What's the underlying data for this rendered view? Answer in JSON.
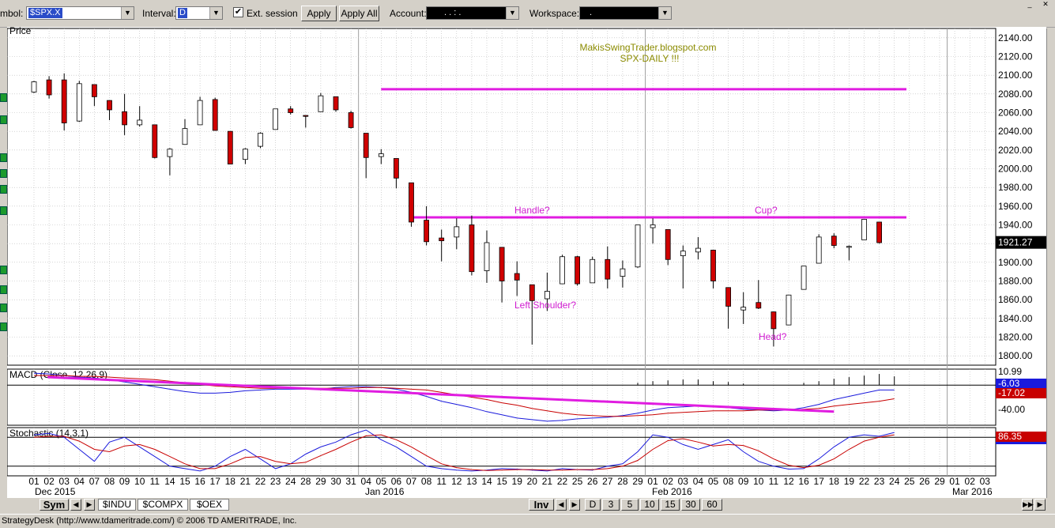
{
  "toolbar": {
    "symbol_label": "mbol:",
    "symbol_value": "$SPX.X",
    "interval_label": "Interval:",
    "interval_value": "D",
    "ext_session_label": "Ext. session",
    "ext_session_checked": "✔",
    "apply_label": "Apply",
    "apply_all_label": "Apply All",
    "account_label": "Account:",
    "account_value": ". . : .",
    "workspace_label": "Workspace:",
    "workspace_value": "."
  },
  "chart_data": [
    {
      "type": "candlestick",
      "panel": "price",
      "title": "Price",
      "annotations_text": [
        "MakisSwingTrader.blogspot.com",
        "SPX-DAILY  !!!"
      ],
      "labels": {
        "handle": "Handle?",
        "cup": "Cup?",
        "left_shoulder": "Left Shoulder?",
        "head": "Head?"
      },
      "last_price": "1921.27",
      "ylim": [
        1790,
        2150
      ],
      "yticks": [
        "2140.00",
        "2120.00",
        "2100.00",
        "2080.00",
        "2060.00",
        "2040.00",
        "2020.00",
        "2000.00",
        "1980.00",
        "1960.00",
        "1940.00",
        "1920.00",
        "1900.00",
        "1880.00",
        "1860.00",
        "1840.00",
        "1820.00",
        "1800.00"
      ],
      "horizontal_lines": [
        {
          "y": 2085,
          "x_start": "2016-01-05",
          "x_end": "2016-02-25",
          "color": "#e01ce0"
        },
        {
          "y": 1948,
          "x_start": "2016-01-07",
          "x_end": "2016-02-25",
          "color": "#e01ce0"
        }
      ],
      "candles": [
        {
          "x": "2015-12-01",
          "o": 2082,
          "h": 2094,
          "l": 2081,
          "c": 2093
        },
        {
          "x": "2015-12-02",
          "o": 2095,
          "h": 2099,
          "l": 2075,
          "c": 2079
        },
        {
          "x": "2015-12-03",
          "o": 2095,
          "h": 2102,
          "l": 2041,
          "c": 2049
        },
        {
          "x": "2015-12-04",
          "o": 2051,
          "h": 2094,
          "l": 2050,
          "c": 2091
        },
        {
          "x": "2015-12-07",
          "o": 2090,
          "h": 2090,
          "l": 2067,
          "c": 2077
        },
        {
          "x": "2015-12-08",
          "o": 2073,
          "h": 2073,
          "l": 2052,
          "c": 2063
        },
        {
          "x": "2015-12-09",
          "o": 2061,
          "h": 2080,
          "l": 2036,
          "c": 2047
        },
        {
          "x": "2015-12-10",
          "o": 2047,
          "h": 2067,
          "l": 2045,
          "c": 2052
        },
        {
          "x": "2015-12-11",
          "o": 2047,
          "h": 2047,
          "l": 2011,
          "c": 2012
        },
        {
          "x": "2015-12-14",
          "o": 2013,
          "h": 2022,
          "l": 1993,
          "c": 2021
        },
        {
          "x": "2015-12-15",
          "o": 2026,
          "h": 2053,
          "l": 2026,
          "c": 2043
        },
        {
          "x": "2015-12-16",
          "o": 2047,
          "h": 2077,
          "l": 2047,
          "c": 2073
        },
        {
          "x": "2015-12-17",
          "o": 2074,
          "h": 2076,
          "l": 2041,
          "c": 2041
        },
        {
          "x": "2015-12-18",
          "o": 2040,
          "h": 2040,
          "l": 2005,
          "c": 2005
        },
        {
          "x": "2015-12-21",
          "o": 2010,
          "h": 2022,
          "l": 2005,
          "c": 2021
        },
        {
          "x": "2015-12-22",
          "o": 2024,
          "h": 2039,
          "l": 2022,
          "c": 2038
        },
        {
          "x": "2015-12-23",
          "o": 2042,
          "h": 2064,
          "l": 2042,
          "c": 2064
        },
        {
          "x": "2015-12-24",
          "o": 2064,
          "h": 2067,
          "l": 2058,
          "c": 2060
        },
        {
          "x": "2015-12-28",
          "o": 2057,
          "h": 2057,
          "l": 2044,
          "c": 2056
        },
        {
          "x": "2015-12-29",
          "o": 2061,
          "h": 2081,
          "l": 2061,
          "c": 2078
        },
        {
          "x": "2015-12-30",
          "o": 2077,
          "h": 2077,
          "l": 2061,
          "c": 2063
        },
        {
          "x": "2015-12-31",
          "o": 2060,
          "h": 2062,
          "l": 2043,
          "c": 2044
        },
        {
          "x": "2016-01-04",
          "o": 2038,
          "h": 2038,
          "l": 1990,
          "c": 2012
        },
        {
          "x": "2016-01-05",
          "o": 2013,
          "h": 2021,
          "l": 2005,
          "c": 2016
        },
        {
          "x": "2016-01-06",
          "o": 2011,
          "h": 2011,
          "l": 1979,
          "c": 1990
        },
        {
          "x": "2016-01-07",
          "o": 1985,
          "h": 1985,
          "l": 1938,
          "c": 1943
        },
        {
          "x": "2016-01-08",
          "o": 1945,
          "h": 1960,
          "l": 1918,
          "c": 1922
        },
        {
          "x": "2016-01-11",
          "o": 1926,
          "h": 1935,
          "l": 1901,
          "c": 1923
        },
        {
          "x": "2016-01-12",
          "o": 1927,
          "h": 1947,
          "l": 1914,
          "c": 1938
        },
        {
          "x": "2016-01-13",
          "o": 1940,
          "h": 1950,
          "l": 1886,
          "c": 1890
        },
        {
          "x": "2016-01-14",
          "o": 1891,
          "h": 1934,
          "l": 1878,
          "c": 1921
        },
        {
          "x": "2016-01-15",
          "o": 1916,
          "h": 1916,
          "l": 1857,
          "c": 1880
        },
        {
          "x": "2016-01-19",
          "o": 1888,
          "h": 1901,
          "l": 1864,
          "c": 1881
        },
        {
          "x": "2016-01-20",
          "o": 1876,
          "h": 1876,
          "l": 1812,
          "c": 1859
        },
        {
          "x": "2016-01-21",
          "o": 1861,
          "h": 1889,
          "l": 1848,
          "c": 1869
        },
        {
          "x": "2016-01-22",
          "o": 1877,
          "h": 1908,
          "l": 1877,
          "c": 1906
        },
        {
          "x": "2016-01-25",
          "o": 1906,
          "h": 1907,
          "l": 1875,
          "c": 1877
        },
        {
          "x": "2016-01-26",
          "o": 1878,
          "h": 1906,
          "l": 1878,
          "c": 1903
        },
        {
          "x": "2016-01-27",
          "o": 1903,
          "h": 1917,
          "l": 1872,
          "c": 1882
        },
        {
          "x": "2016-01-28",
          "o": 1885,
          "h": 1902,
          "l": 1873,
          "c": 1893
        },
        {
          "x": "2016-01-29",
          "o": 1895,
          "h": 1940,
          "l": 1894,
          "c": 1940
        },
        {
          "x": "2016-02-01",
          "o": 1937,
          "h": 1947,
          "l": 1920,
          "c": 1940
        },
        {
          "x": "2016-02-02",
          "o": 1935,
          "h": 1935,
          "l": 1897,
          "c": 1903
        },
        {
          "x": "2016-02-03",
          "o": 1907,
          "h": 1918,
          "l": 1872,
          "c": 1912
        },
        {
          "x": "2016-02-04",
          "o": 1911,
          "h": 1927,
          "l": 1903,
          "c": 1915
        },
        {
          "x": "2016-02-05",
          "o": 1913,
          "h": 1913,
          "l": 1872,
          "c": 1880
        },
        {
          "x": "2016-02-08",
          "o": 1873,
          "h": 1873,
          "l": 1829,
          "c": 1853
        },
        {
          "x": "2016-02-09",
          "o": 1849,
          "h": 1868,
          "l": 1834,
          "c": 1852
        },
        {
          "x": "2016-02-10",
          "o": 1857,
          "h": 1881,
          "l": 1850,
          "c": 1851
        },
        {
          "x": "2016-02-11",
          "o": 1847,
          "h": 1847,
          "l": 1810,
          "c": 1829
        },
        {
          "x": "2016-02-12",
          "o": 1833,
          "h": 1865,
          "l": 1833,
          "c": 1865
        },
        {
          "x": "2016-02-16",
          "o": 1871,
          "h": 1896,
          "l": 1871,
          "c": 1896
        },
        {
          "x": "2016-02-17",
          "o": 1899,
          "h": 1930,
          "l": 1899,
          "c": 1927
        },
        {
          "x": "2016-02-18",
          "o": 1928,
          "h": 1931,
          "l": 1915,
          "c": 1918
        },
        {
          "x": "2016-02-19",
          "o": 1916,
          "h": 1918,
          "l": 1902,
          "c": 1917
        },
        {
          "x": "2016-02-22",
          "o": 1924,
          "h": 1946,
          "l": 1924,
          "c": 1946
        },
        {
          "x": "2016-02-23",
          "o": 1943,
          "h": 1943,
          "l": 1920,
          "c": 1921
        }
      ]
    },
    {
      "type": "line",
      "panel": "macd",
      "title": "MACD (Close, 12,26,9)",
      "value_labels": [
        "10.99",
        "-6.03",
        "-17.02",
        "-40.00"
      ],
      "value_label_colors": [
        "#000000",
        "#1a1adc",
        "#c80000",
        "#000000"
      ],
      "ylim": [
        -50,
        20
      ],
      "series": [
        {
          "color": "#1a1adc",
          "values": [
            15,
            14,
            12,
            10,
            9,
            7,
            4,
            1,
            -2,
            -5,
            -8,
            -10,
            -10,
            -9,
            -7,
            -6,
            -5,
            -5,
            -5,
            -5,
            -3,
            -2,
            -2,
            -3,
            -5,
            -9,
            -14,
            -20,
            -24,
            -28,
            -33,
            -37,
            -41,
            -43,
            -45,
            -44,
            -42,
            -41,
            -40,
            -38,
            -35,
            -31,
            -28,
            -27,
            -26,
            -27,
            -28,
            -30,
            -31,
            -32,
            -31,
            -28,
            -24,
            -18,
            -14,
            -10,
            -6,
            -6
          ]
        },
        {
          "color": "#c80000",
          "values": [
            12,
            12,
            12,
            11,
            11,
            10,
            9,
            8,
            7,
            5,
            3,
            1,
            -1,
            -2,
            -3,
            -4,
            -4,
            -4,
            -4,
            -4,
            -4,
            -4,
            -3,
            -3,
            -4,
            -5,
            -6,
            -9,
            -12,
            -15,
            -18,
            -22,
            -25,
            -29,
            -32,
            -35,
            -37,
            -38,
            -39,
            -39,
            -38,
            -37,
            -35,
            -34,
            -33,
            -32,
            -32,
            -32,
            -31,
            -31,
            -31,
            -30,
            -29,
            -26,
            -24,
            -22,
            -20,
            -17
          ]
        }
      ],
      "histogram": [
        0,
        0,
        0,
        0,
        0,
        0,
        0,
        0,
        0,
        0,
        0,
        0,
        0,
        0,
        0,
        0,
        0,
        0,
        0,
        0,
        0,
        0,
        0,
        0,
        0,
        0,
        0,
        0,
        0,
        0,
        0,
        0,
        0,
        0,
        0,
        0,
        0,
        0,
        0,
        0,
        3,
        5,
        6,
        7,
        7,
        5,
        4,
        2,
        0,
        0,
        0,
        3,
        5,
        8,
        10,
        12,
        14,
        11
      ],
      "trendline": {
        "x_start": "2015-12-04",
        "y_start": 10,
        "x_end": "2016-02-18",
        "y_end": -33,
        "color": "#e01ce0"
      }
    },
    {
      "type": "line",
      "panel": "stochastic",
      "title": "Stochastic (14,3,1)",
      "value_labels": [
        "86.35"
      ],
      "ylim": [
        0,
        100
      ],
      "levels": [
        80,
        20
      ],
      "series": [
        {
          "color": "#1a1adc",
          "values": [
            85,
            88,
            80,
            55,
            30,
            70,
            80,
            60,
            40,
            20,
            15,
            10,
            20,
            40,
            55,
            35,
            15,
            25,
            45,
            60,
            70,
            85,
            95,
            75,
            60,
            40,
            20,
            15,
            12,
            10,
            12,
            15,
            14,
            12,
            10,
            15,
            13,
            12,
            20,
            25,
            50,
            85,
            80,
            65,
            55,
            65,
            75,
            50,
            30,
            20,
            14,
            15,
            35,
            60,
            80,
            85,
            82,
            90
          ]
        },
        {
          "color": "#c80000",
          "values": [
            80,
            82,
            82,
            72,
            55,
            50,
            62,
            65,
            55,
            40,
            25,
            15,
            15,
            25,
            38,
            40,
            30,
            25,
            28,
            42,
            55,
            70,
            83,
            85,
            75,
            60,
            42,
            25,
            17,
            13,
            11,
            12,
            13,
            13,
            12,
            12,
            13,
            13,
            15,
            20,
            32,
            55,
            73,
            77,
            70,
            62,
            65,
            63,
            52,
            35,
            22,
            17,
            22,
            35,
            55,
            72,
            80,
            85
          ]
        }
      ]
    }
  ],
  "x_axis": {
    "labels": [
      "01",
      "02",
      "03",
      "04",
      "07",
      "08",
      "09",
      "10",
      "11",
      "14",
      "15",
      "16",
      "17",
      "18",
      "21",
      "22",
      "23",
      "24",
      "28",
      "29",
      "30",
      "31",
      "04",
      "05",
      "06",
      "07",
      "08",
      "11",
      "12",
      "13",
      "14",
      "15",
      "19",
      "20",
      "21",
      "22",
      "25",
      "26",
      "27",
      "28",
      "29",
      "01",
      "02",
      "03",
      "04",
      "05",
      "08",
      "09",
      "10",
      "11",
      "12",
      "16",
      "17",
      "18",
      "19",
      "22",
      "23",
      "24",
      "25",
      "26",
      "29",
      "01",
      "02",
      "03"
    ],
    "months": [
      "Dec 2015",
      "Jan 2016",
      "Feb 2016",
      "Mar 2016"
    ]
  },
  "navbar": {
    "sym_label": "Sym",
    "tabs": [
      "$INDU",
      "$COMPX",
      "$OEX"
    ],
    "inv_label": "Inv",
    "intervals": [
      "D",
      "3",
      "5",
      "10",
      "15",
      "30",
      "60"
    ]
  },
  "status": {
    "text": "StrategyDesk (http://www.tdameritrade.com/) © 2006 TD AMERITRADE, Inc."
  }
}
